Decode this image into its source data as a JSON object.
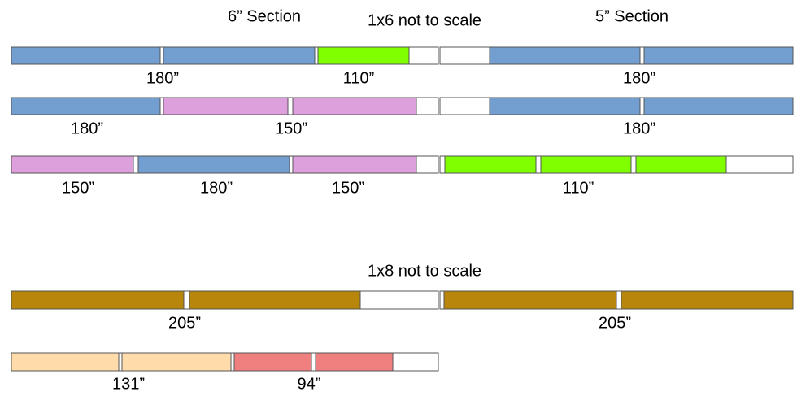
{
  "headings": {
    "six_inch": "6” Section",
    "one_by_six": "1x6  not to scale",
    "five_inch": "5” Section",
    "one_by_eight": "1x8  not to scale"
  },
  "boards": [
    {
      "labels": [
        "180”",
        "110”",
        "180”"
      ]
    },
    {
      "labels": [
        "180”",
        "150”",
        "180”"
      ]
    },
    {
      "labels": [
        "150”",
        "180”",
        "150”",
        "110”"
      ]
    },
    {
      "labels": [
        "205”",
        "205”"
      ]
    },
    {
      "labels": [
        "131”",
        "94”"
      ]
    }
  ]
}
